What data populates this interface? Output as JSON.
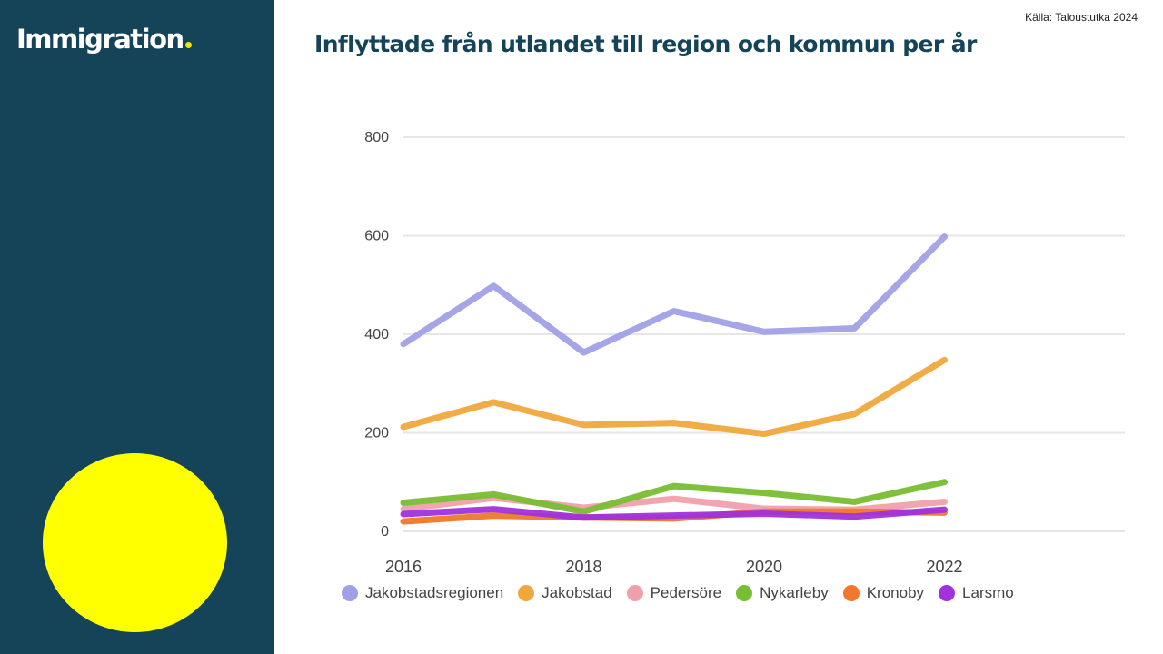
{
  "sidebar": {
    "brand": "Immigration",
    "accent_color": "#ffff00",
    "background_color": "#154459"
  },
  "header": {
    "title": "Inflyttade från utlandet till region och kommun per år",
    "source": "Källa: Taloustutka 2024"
  },
  "chart_data": {
    "type": "line",
    "x": [
      2016,
      2017,
      2018,
      2019,
      2020,
      2021,
      2022
    ],
    "x_ticks": [
      "2016",
      "2018",
      "2020",
      "2022"
    ],
    "xlim": [
      2016,
      2024
    ],
    "y_ticks": [
      "0",
      "200",
      "400",
      "600",
      "800"
    ],
    "ylim": [
      0,
      800
    ],
    "grid": true,
    "legend_position": "bottom",
    "series": [
      {
        "name": "Jakobstadsregionen",
        "color": "#a0a0e6",
        "values": [
          380,
          498,
          363,
          447,
          405,
          412,
          598
        ]
      },
      {
        "name": "Jakobstad",
        "color": "#f0a83c",
        "values": [
          212,
          262,
          216,
          220,
          198,
          238,
          348
        ]
      },
      {
        "name": "Pedersöre",
        "color": "#f0a0aa",
        "values": [
          45,
          68,
          48,
          66,
          46,
          44,
          60
        ]
      },
      {
        "name": "Nykarleby",
        "color": "#78be32",
        "values": [
          58,
          75,
          40,
          92,
          78,
          60,
          100
        ]
      },
      {
        "name": "Kronoby",
        "color": "#f07828",
        "values": [
          20,
          32,
          28,
          26,
          40,
          40,
          38
        ]
      },
      {
        "name": "Larsmo",
        "color": "#a032dc",
        "values": [
          35,
          45,
          28,
          32,
          36,
          30,
          44
        ]
      }
    ]
  }
}
